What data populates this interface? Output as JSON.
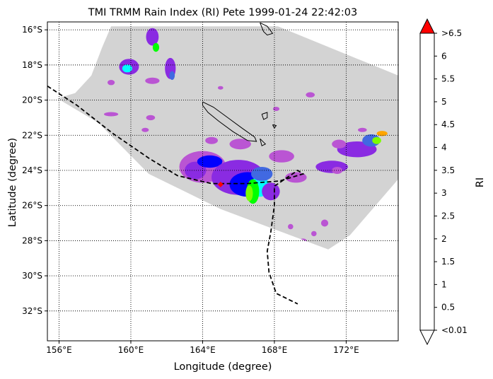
{
  "title": "TMI TRMM Rain Index (RI) Pete 1999-01-24 22:42:03",
  "x_axis": {
    "label": "Longitude (degree)",
    "ticks": [
      {
        "value": 156,
        "label": "156°E"
      },
      {
        "value": 160,
        "label": "160°E"
      },
      {
        "value": 164,
        "label": "164°E"
      },
      {
        "value": 168,
        "label": "168°E"
      },
      {
        "value": 172,
        "label": "172°E"
      }
    ],
    "range": [
      155.35,
      174.9
    ]
  },
  "y_axis": {
    "label": "Latitude (degree)",
    "ticks": [
      {
        "value": -16,
        "label": "16°S"
      },
      {
        "value": -18,
        "label": "18°S"
      },
      {
        "value": -20,
        "label": "20°S"
      },
      {
        "value": -22,
        "label": "22°S"
      },
      {
        "value": -24,
        "label": "24°S"
      },
      {
        "value": -26,
        "label": "26°S"
      },
      {
        "value": -28,
        "label": "28°S"
      },
      {
        "value": -30,
        "label": "30°S"
      },
      {
        "value": -32,
        "label": "32°S"
      }
    ],
    "range": [
      -33.7,
      -15.55
    ]
  },
  "colorbar": {
    "label": "RI",
    "colors": {
      "under": "#ffffff",
      "over": "#ff0000",
      "bins": [
        "#ba55d3",
        "#8a2be2",
        "#0000ff",
        "#4169e1",
        "#00ffff",
        "#00ff00",
        "#7cfc00",
        "#ffff00",
        "#ffa500",
        "#800000",
        "#000000"
      ]
    },
    "tick_labels": [
      "<0.01",
      "0.5",
      "1",
      "1.5",
      "2",
      "2.5",
      "3",
      "3.5",
      "4",
      "4.5",
      "5",
      "5.5",
      "6",
      ">6.5"
    ]
  },
  "colors": {
    "swath": "#d3d3d3",
    "coast": "#000000",
    "track": "#000000",
    "center_marker": "#ff0000"
  },
  "chart_data": {
    "type": "heatmap",
    "title": "TMI TRMM Rain Index (RI) Pete 1999-01-24 22:42:03",
    "xlabel": "Longitude (degree)",
    "ylabel": "Latitude (degree)",
    "xlim": [
      155.35,
      174.9
    ],
    "ylim": [
      -33.7,
      -15.55
    ],
    "grid": true,
    "colorbar_label": "RI",
    "swath_outline": [
      [
        158.9,
        -15.8
      ],
      [
        168.2,
        -15.8
      ],
      [
        174.9,
        -18.6
      ],
      [
        174.9,
        -24.5
      ],
      [
        172.2,
        -27.7
      ],
      [
        171.0,
        -28.5
      ],
      [
        165.0,
        -26.2
      ],
      [
        161.0,
        -24.2
      ],
      [
        158.2,
        -21.3
      ],
      [
        155.9,
        -19.9
      ],
      [
        156.9,
        -19.6
      ],
      [
        157.8,
        -18.6
      ],
      [
        158.4,
        -17.0
      ]
    ],
    "storm_track": [
      [
        155.35,
        -19.2
      ],
      [
        157.0,
        -20.3
      ],
      [
        159.0,
        -21.9
      ],
      [
        161.0,
        -23.3
      ],
      [
        162.6,
        -24.3
      ],
      [
        164.5,
        -24.75
      ],
      [
        166.5,
        -24.75
      ],
      [
        168.3,
        -24.6
      ],
      [
        169.6,
        -24.2
      ],
      [
        169.3,
        -24.0
      ],
      [
        168.0,
        -24.9
      ],
      [
        168.0,
        -26.0
      ],
      [
        167.8,
        -27.5
      ],
      [
        167.6,
        -28.6
      ],
      [
        167.7,
        -29.8
      ],
      [
        168.1,
        -31.0
      ],
      [
        169.3,
        -31.6
      ]
    ],
    "storm_center": [
      165.0,
      -24.8
    ],
    "rain_cells": [
      {
        "lon": 159.9,
        "lat": -18.1,
        "rx": 0.55,
        "ry": 0.45,
        "ri": 0.8
      },
      {
        "lon": 159.8,
        "lat": -18.2,
        "rx": 0.28,
        "ry": 0.22,
        "ri": 2.2
      },
      {
        "lon": 161.2,
        "lat": -16.4,
        "rx": 0.35,
        "ry": 0.5,
        "ri": 0.8
      },
      {
        "lon": 161.4,
        "lat": -17.0,
        "rx": 0.18,
        "ry": 0.25,
        "ri": 2.5
      },
      {
        "lon": 162.2,
        "lat": -18.2,
        "rx": 0.3,
        "ry": 0.6,
        "ri": 0.8
      },
      {
        "lon": 162.3,
        "lat": -18.6,
        "rx": 0.15,
        "ry": 0.25,
        "ri": 1.8
      },
      {
        "lon": 161.2,
        "lat": -18.9,
        "rx": 0.4,
        "ry": 0.18,
        "ri": 0.4
      },
      {
        "lon": 158.9,
        "lat": -19.0,
        "rx": 0.2,
        "ry": 0.15,
        "ri": 0.4
      },
      {
        "lon": 164.0,
        "lat": -23.8,
        "rx": 1.3,
        "ry": 0.9,
        "ri": 0.4
      },
      {
        "lon": 163.6,
        "lat": -24.0,
        "rx": 0.6,
        "ry": 0.5,
        "ri": 0.9
      },
      {
        "lon": 164.4,
        "lat": -23.5,
        "rx": 0.7,
        "ry": 0.35,
        "ri": 1.2
      },
      {
        "lon": 166.0,
        "lat": -24.4,
        "rx": 1.5,
        "ry": 1.0,
        "ri": 0.8
      },
      {
        "lon": 166.5,
        "lat": -24.8,
        "rx": 1.0,
        "ry": 0.7,
        "ri": 1.2
      },
      {
        "lon": 167.2,
        "lat": -24.9,
        "rx": 0.5,
        "ry": 0.6,
        "ri": 2.2
      },
      {
        "lon": 166.8,
        "lat": -25.2,
        "rx": 0.35,
        "ry": 0.7,
        "ri": 2.7
      },
      {
        "lon": 166.6,
        "lat": -25.3,
        "rx": 0.2,
        "ry": 0.45,
        "ri": 3.2
      },
      {
        "lon": 167.8,
        "lat": -25.2,
        "rx": 0.5,
        "ry": 0.5,
        "ri": 0.7
      },
      {
        "lon": 166.1,
        "lat": -22.5,
        "rx": 0.6,
        "ry": 0.3,
        "ri": 0.4
      },
      {
        "lon": 168.4,
        "lat": -23.2,
        "rx": 0.7,
        "ry": 0.35,
        "ri": 0.4
      },
      {
        "lon": 169.2,
        "lat": -24.4,
        "rx": 0.6,
        "ry": 0.3,
        "ri": 0.4
      },
      {
        "lon": 158.9,
        "lat": -20.8,
        "rx": 0.4,
        "ry": 0.12,
        "ri": 0.4
      },
      {
        "lon": 161.1,
        "lat": -21.0,
        "rx": 0.25,
        "ry": 0.15,
        "ri": 0.4
      },
      {
        "lon": 160.8,
        "lat": -21.7,
        "rx": 0.2,
        "ry": 0.12,
        "ri": 0.4
      },
      {
        "lon": 164.5,
        "lat": -22.3,
        "rx": 0.35,
        "ry": 0.2,
        "ri": 0.4
      },
      {
        "lon": 171.2,
        "lat": -23.8,
        "rx": 0.9,
        "ry": 0.35,
        "ri": 0.8
      },
      {
        "lon": 172.6,
        "lat": -22.8,
        "rx": 1.1,
        "ry": 0.45,
        "ri": 0.8
      },
      {
        "lon": 173.4,
        "lat": -22.3,
        "rx": 0.5,
        "ry": 0.35,
        "ri": 1.8
      },
      {
        "lon": 173.7,
        "lat": -22.3,
        "rx": 0.25,
        "ry": 0.2,
        "ri": 3.2
      },
      {
        "lon": 171.6,
        "lat": -22.5,
        "rx": 0.4,
        "ry": 0.25,
        "ri": 0.4
      },
      {
        "lon": 172.9,
        "lat": -21.7,
        "rx": 0.25,
        "ry": 0.12,
        "ri": 0.4
      },
      {
        "lon": 174.0,
        "lat": -21.9,
        "rx": 0.3,
        "ry": 0.15,
        "ri": 4.2
      },
      {
        "lon": 170.8,
        "lat": -27.0,
        "rx": 0.2,
        "ry": 0.2,
        "ri": 0.4
      },
      {
        "lon": 170.2,
        "lat": -27.6,
        "rx": 0.15,
        "ry": 0.15,
        "ri": 0.4
      },
      {
        "lon": 169.6,
        "lat": -28.0,
        "rx": 0.2,
        "ry": 0.12,
        "ri": 0.4
      },
      {
        "lon": 168.9,
        "lat": -27.2,
        "rx": 0.15,
        "ry": 0.15,
        "ri": 0.4
      },
      {
        "lon": 171.5,
        "lat": -24.0,
        "rx": 0.3,
        "ry": 0.2,
        "ri": 0.4
      },
      {
        "lon": 170.0,
        "lat": -19.7,
        "rx": 0.25,
        "ry": 0.15,
        "ri": 0.4
      },
      {
        "lon": 168.1,
        "lat": -20.5,
        "rx": 0.18,
        "ry": 0.12,
        "ri": 0.4
      },
      {
        "lon": 165.0,
        "lat": -19.3,
        "rx": 0.15,
        "ry": 0.1,
        "ri": 0.4
      },
      {
        "lon": 167.3,
        "lat": -24.2,
        "rx": 0.6,
        "ry": 0.4,
        "ri": 1.7
      }
    ]
  }
}
